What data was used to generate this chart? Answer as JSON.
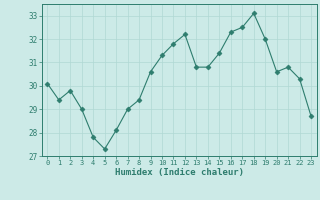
{
  "x": [
    0,
    1,
    2,
    3,
    4,
    5,
    6,
    7,
    8,
    9,
    10,
    11,
    12,
    13,
    14,
    15,
    16,
    17,
    18,
    19,
    20,
    21,
    22,
    23
  ],
  "y": [
    30.1,
    29.4,
    29.8,
    29.0,
    27.8,
    27.3,
    28.1,
    29.0,
    29.4,
    30.6,
    31.3,
    31.8,
    32.2,
    30.8,
    30.8,
    31.4,
    32.3,
    32.5,
    33.1,
    32.0,
    30.6,
    30.8,
    30.3,
    28.7
  ],
  "line_color": "#2e7d6e",
  "marker": "D",
  "marker_size": 2.5,
  "bg_color": "#cceae7",
  "grid_color": "#b0d8d4",
  "xlabel": "Humidex (Indice chaleur)",
  "ylim": [
    27,
    33.5
  ],
  "yticks": [
    27,
    28,
    29,
    30,
    31,
    32,
    33
  ],
  "xticks": [
    0,
    1,
    2,
    3,
    4,
    5,
    6,
    7,
    8,
    9,
    10,
    11,
    12,
    13,
    14,
    15,
    16,
    17,
    18,
    19,
    20,
    21,
    22,
    23
  ],
  "tick_color": "#2e7d6e",
  "spine_color": "#2e7d6e",
  "xlabel_color": "#2e7d6e",
  "font_family": "monospace"
}
